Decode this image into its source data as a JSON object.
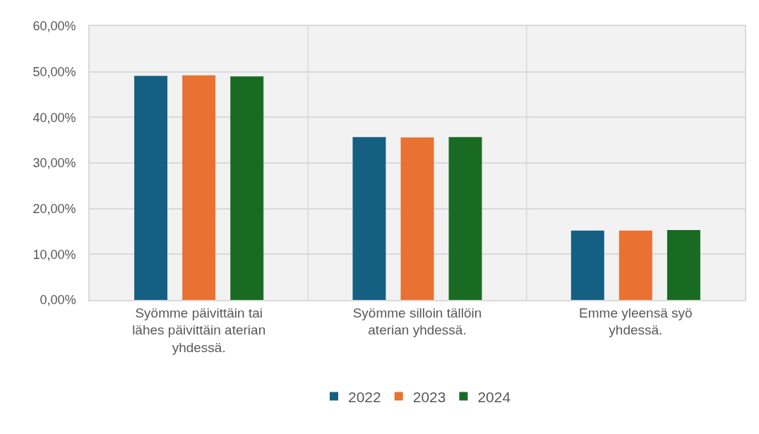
{
  "chart_data": {
    "type": "bar",
    "categories": [
      "Syömme päivittäin tai lähes päivittäin aterian yhdessä.",
      "Syömme silloin tällöin aterian yhdessä.",
      "Emme yleensä syö yhdessä."
    ],
    "series": [
      {
        "name": "2022",
        "color": "#156082",
        "values": [
          49.1,
          35.7,
          15.2
        ]
      },
      {
        "name": "2023",
        "color": "#e97132",
        "values": [
          49.2,
          35.6,
          15.2
        ]
      },
      {
        "name": "2024",
        "color": "#196b24",
        "values": [
          49.0,
          35.7,
          15.3
        ]
      }
    ],
    "ylim": [
      0,
      60
    ],
    "yticks": [
      {
        "value": 0,
        "label": "0,00%"
      },
      {
        "value": 10,
        "label": "10,00%"
      },
      {
        "value": 20,
        "label": "20,00%"
      },
      {
        "value": 30,
        "label": "30,00%"
      },
      {
        "value": 40,
        "label": "40,00%"
      },
      {
        "value": 50,
        "label": "50,00%"
      },
      {
        "value": 60,
        "label": "60,00%"
      }
    ],
    "grid": true,
    "legend": "bottom"
  }
}
